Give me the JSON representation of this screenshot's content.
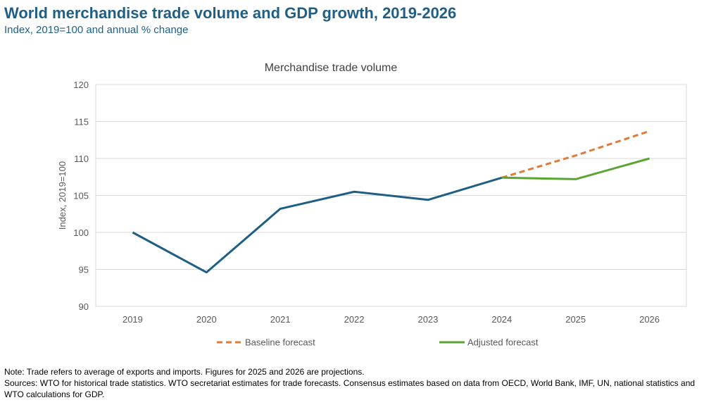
{
  "header": {
    "title": "World merchandise trade volume and GDP growth, 2019-2026",
    "subtitle": "Index, 2019=100 and annual % change"
  },
  "notes": {
    "note": "Note: Trade refers to average of exports and imports. Figures for 2025 and 2026 are projections.",
    "sources": "Sources: WTO for historical trade statistics. WTO secretariat estimates for trade forecasts.  Consensus estimates based on data from OECD, World Bank, IMF, UN, national statistics and WTO calculations for GDP."
  },
  "colors": {
    "historical": "#1f5f86",
    "baseline": "#e07b39",
    "adjusted": "#5aa632",
    "grid": "#d9d9d9",
    "axis_text": "#595959"
  },
  "chart_data": {
    "type": "line",
    "title": "Merchandise trade volume",
    "xlabel": "",
    "ylabel": "Index, 2019=100",
    "categories": [
      "2019",
      "2020",
      "2021",
      "2022",
      "2023",
      "2024",
      "2025",
      "2026"
    ],
    "ylim": [
      90,
      120
    ],
    "yticks": [
      90,
      95,
      100,
      105,
      110,
      115,
      120
    ],
    "grid": true,
    "legend_position": "bottom",
    "series": [
      {
        "name": "",
        "style": "solid",
        "color_key": "historical",
        "x": [
          "2019",
          "2020",
          "2021",
          "2022",
          "2023",
          "2024"
        ],
        "values": [
          100,
          94.6,
          103.2,
          105.5,
          104.4,
          107.4
        ]
      },
      {
        "name": "Baseline forecast",
        "style": "dashed",
        "color_key": "baseline",
        "x": [
          "2024",
          "2025",
          "2026"
        ],
        "values": [
          107.4,
          110.4,
          113.7
        ]
      },
      {
        "name": "Adjusted forecast",
        "style": "solid",
        "color_key": "adjusted",
        "x": [
          "2024",
          "2025",
          "2026"
        ],
        "values": [
          107.4,
          107.2,
          110.0
        ]
      }
    ]
  }
}
